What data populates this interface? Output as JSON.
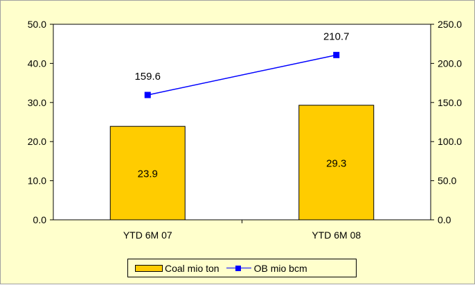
{
  "chart_data": {
    "type": "bar",
    "categories": [
      "YTD 6M 07",
      "YTD 6M 08"
    ],
    "series": [
      {
        "name": "Coal mio ton",
        "type": "bar",
        "axis": "left",
        "values": [
          23.9,
          29.3
        ],
        "color": "#FFCC00"
      },
      {
        "name": "OB mio bcm",
        "type": "line",
        "axis": "right",
        "values": [
          159.6,
          210.7
        ],
        "color": "#0000FF"
      }
    ],
    "y_left": {
      "min": 0,
      "max": 50,
      "ticks": [
        "0.0",
        "10.0",
        "20.0",
        "30.0",
        "40.0",
        "50.0"
      ]
    },
    "y_right": {
      "min": 0,
      "max": 250,
      "ticks": [
        "0.0",
        "50.0",
        "100.0",
        "150.0",
        "200.0",
        "250.0"
      ]
    },
    "data_labels": {
      "bars": [
        "23.9",
        "29.3"
      ],
      "line": [
        "159.6",
        "210.7"
      ]
    },
    "grid": false,
    "legend_position": "bottom",
    "background": "#FFFFCC",
    "plot_background": "#FFFFFF"
  }
}
